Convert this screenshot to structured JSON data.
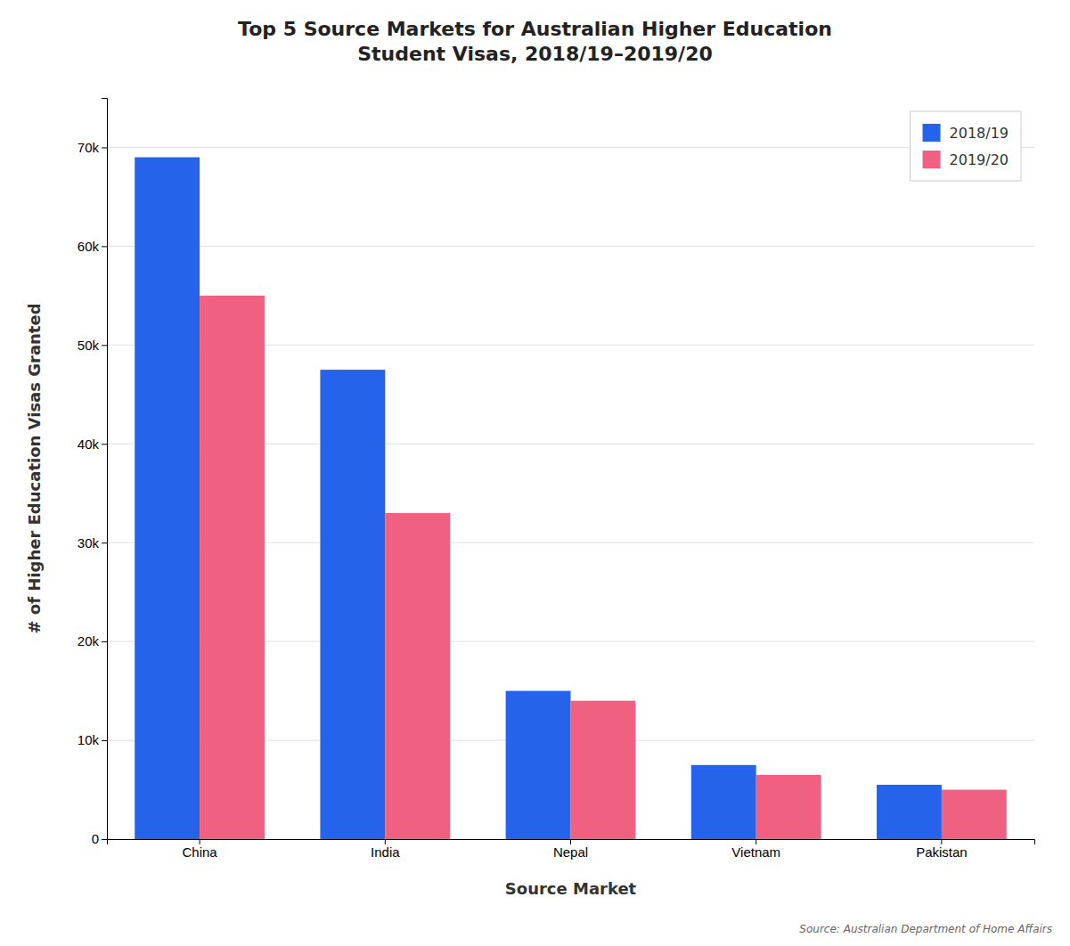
{
  "chart_data": {
    "type": "bar",
    "title": "Top 5 Source Markets for Australian Higher Education\nStudent Visas, 2018/19–2019/20",
    "xlabel": "Source Market",
    "ylabel": "# of Higher Education Visas Granted",
    "categories": [
      "China",
      "India",
      "Nepal",
      "Vietnam",
      "Pakistan"
    ],
    "series": [
      {
        "name": "2018/19",
        "color": "#2563EB",
        "values": [
          69000,
          47500,
          15000,
          7500,
          5500
        ]
      },
      {
        "name": "2019/20",
        "color": "#F06080",
        "values": [
          55000,
          33000,
          14000,
          6500,
          5000
        ]
      }
    ],
    "ylim": [
      0,
      75000
    ],
    "yticks": [
      0,
      {
        "value": 10000,
        "label": "10k"
      },
      {
        "value": 20000,
        "label": "20k"
      },
      {
        "value": 30000,
        "label": "30k"
      },
      {
        "value": 40000,
        "label": "40k"
      },
      {
        "value": 50000,
        "label": "50k"
      },
      {
        "value": 60000,
        "label": "60k"
      },
      {
        "value": 70000,
        "label": "70k"
      }
    ],
    "grid": true,
    "legend": "upper right",
    "annotations": [
      "Source: Australian Department of Home Affairs"
    ]
  }
}
